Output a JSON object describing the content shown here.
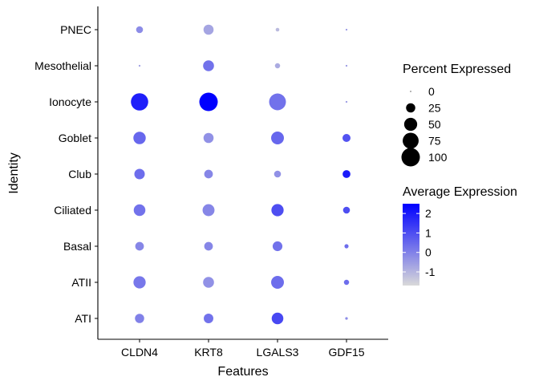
{
  "chart_data": {
    "type": "scatter",
    "subtype": "dot-plot",
    "xlabel": "Features",
    "ylabel": "Identity",
    "features": [
      "CLDN4",
      "KRT8",
      "LGALS3",
      "GDF15"
    ],
    "identities": [
      "ATI",
      "ATII",
      "Basal",
      "Ciliated",
      "Club",
      "Goblet",
      "Ionocyte",
      "Mesothelial",
      "PNEC"
    ],
    "points": [
      {
        "feature": "CLDN4",
        "identity": "ATI",
        "pct": 25,
        "avg": 0.0
      },
      {
        "feature": "KRT8",
        "identity": "ATI",
        "pct": 27,
        "avg": 0.3
      },
      {
        "feature": "LGALS3",
        "identity": "ATI",
        "pct": 40,
        "avg": 1.1
      },
      {
        "feature": "GDF15",
        "identity": "ATI",
        "pct": 2,
        "avg": -0.2
      },
      {
        "feature": "CLDN4",
        "identity": "ATII",
        "pct": 44,
        "avg": 0.2
      },
      {
        "feature": "KRT8",
        "identity": "ATII",
        "pct": 35,
        "avg": -0.3
      },
      {
        "feature": "LGALS3",
        "identity": "ATII",
        "pct": 48,
        "avg": 0.4
      },
      {
        "feature": "GDF15",
        "identity": "ATII",
        "pct": 8,
        "avg": 0.4
      },
      {
        "feature": "CLDN4",
        "identity": "Basal",
        "pct": 22,
        "avg": -0.1
      },
      {
        "feature": "KRT8",
        "identity": "Basal",
        "pct": 22,
        "avg": -0.1
      },
      {
        "feature": "LGALS3",
        "identity": "Basal",
        "pct": 28,
        "avg": 0.3
      },
      {
        "feature": "GDF15",
        "identity": "Basal",
        "pct": 5,
        "avg": 0.4
      },
      {
        "feature": "CLDN4",
        "identity": "Ciliated",
        "pct": 40,
        "avg": 0.3
      },
      {
        "feature": "KRT8",
        "identity": "Ciliated",
        "pct": 42,
        "avg": -0.1
      },
      {
        "feature": "LGALS3",
        "identity": "Ciliated",
        "pct": 44,
        "avg": 1.0
      },
      {
        "feature": "GDF15",
        "identity": "Ciliated",
        "pct": 14,
        "avg": 1.0
      },
      {
        "feature": "CLDN4",
        "identity": "Club",
        "pct": 32,
        "avg": 0.4
      },
      {
        "feature": "KRT8",
        "identity": "Club",
        "pct": 22,
        "avg": -0.1
      },
      {
        "feature": "LGALS3",
        "identity": "Club",
        "pct": 14,
        "avg": -0.3
      },
      {
        "feature": "GDF15",
        "identity": "Club",
        "pct": 18,
        "avg": 2.0
      },
      {
        "feature": "CLDN4",
        "identity": "Goblet",
        "pct": 45,
        "avg": 0.5
      },
      {
        "feature": "KRT8",
        "identity": "Goblet",
        "pct": 30,
        "avg": -0.3
      },
      {
        "feature": "LGALS3",
        "identity": "Goblet",
        "pct": 48,
        "avg": 0.5
      },
      {
        "feature": "GDF15",
        "identity": "Goblet",
        "pct": 19,
        "avg": 0.9
      },
      {
        "feature": "CLDN4",
        "identity": "Ionocyte",
        "pct": 88,
        "avg": 1.9
      },
      {
        "feature": "KRT8",
        "identity": "Ionocyte",
        "pct": 100,
        "avg": 2.5
      },
      {
        "feature": "LGALS3",
        "identity": "Ionocyte",
        "pct": 83,
        "avg": 0.3
      },
      {
        "feature": "GDF15",
        "identity": "Ionocyte",
        "pct": 1,
        "avg": -0.5
      },
      {
        "feature": "CLDN4",
        "identity": "Mesothelial",
        "pct": 1,
        "avg": -0.6
      },
      {
        "feature": "KRT8",
        "identity": "Mesothelial",
        "pct": 35,
        "avg": 0.3
      },
      {
        "feature": "LGALS3",
        "identity": "Mesothelial",
        "pct": 8,
        "avg": -0.8
      },
      {
        "feature": "GDF15",
        "identity": "Mesothelial",
        "pct": 1,
        "avg": -0.5
      },
      {
        "feature": "CLDN4",
        "identity": "PNEC",
        "pct": 14,
        "avg": -0.2
      },
      {
        "feature": "KRT8",
        "identity": "PNEC",
        "pct": 30,
        "avg": -0.7
      },
      {
        "feature": "LGALS3",
        "identity": "PNEC",
        "pct": 4,
        "avg": -1.1
      },
      {
        "feature": "GDF15",
        "identity": "PNEC",
        "pct": 1,
        "avg": -0.5
      }
    ],
    "size_legend": {
      "title": "Percent Expressed",
      "values": [
        0,
        25,
        50,
        75,
        100
      ],
      "labels": [
        "0",
        "25",
        "50",
        "75",
        "100"
      ]
    },
    "color_legend": {
      "title": "Average Expression",
      "min": -1.7,
      "max": 2.5,
      "tick_values": [
        -1,
        0,
        1,
        2
      ],
      "tick_labels": [
        "-1",
        "0",
        "1",
        "2"
      ],
      "low_color": "#d9d9d9",
      "high_color": "#0000ff"
    },
    "legend_position": "right",
    "grid": false
  }
}
